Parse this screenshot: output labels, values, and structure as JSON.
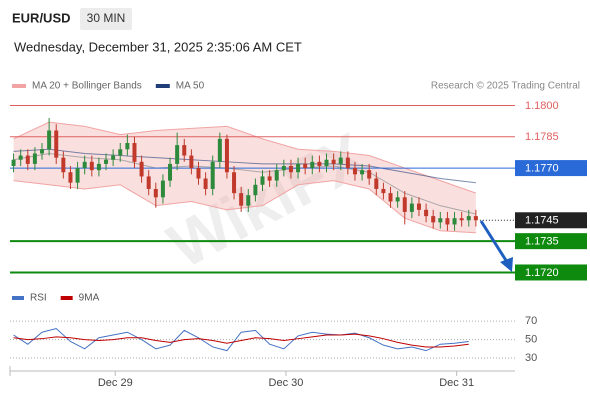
{
  "chart_data": [
    {
      "type": "candlestick",
      "title": "EUR/USD",
      "interval": "30 MIN",
      "subtitle": "Wednesday, December 31, 2025 2:35:06 AM CET",
      "source": "Research © 2025 Trading Central",
      "watermark": "WikiFX",
      "up_color": "#2d8a3c",
      "down_color": "#c0392b",
      "xlim": [
        -0.5,
        70.5
      ],
      "xticks": [
        {
          "value": 14.3,
          "label": "Dec 29"
        },
        {
          "value": 38.3,
          "label": "Dec 30"
        },
        {
          "value": 62.3,
          "label": "Dec 31"
        }
      ],
      "ylim": [
        1.1714,
        1.1805
      ],
      "open": [
        1.1771,
        1.1774,
        1.1776,
        1.1772,
        1.1777,
        1.1779,
        1.1788,
        1.1775,
        1.1768,
        1.1763,
        1.177,
        1.1773,
        1.1769,
        1.1772,
        1.1774,
        1.1776,
        1.1779,
        1.1782,
        1.1773,
        1.1766,
        1.176,
        1.1756,
        1.1764,
        1.1772,
        1.1781,
        1.1776,
        1.177,
        1.1765,
        1.176,
        1.1773,
        1.1784,
        1.1768,
        1.1758,
        1.1752,
        1.1757,
        1.1762,
        1.1766,
        1.1764,
        1.1769,
        1.1771,
        1.1768,
        1.1772,
        1.177,
        1.1773,
        1.1771,
        1.1774,
        1.1772,
        1.1775,
        1.177,
        1.1767,
        1.1769,
        1.1765,
        1.176,
        1.1758,
        1.1754,
        1.1756,
        1.1749,
        1.1753,
        1.175,
        1.1747,
        1.1744,
        1.1746,
        1.1743,
        1.1746,
        1.1745,
        1.1747
      ],
      "high": [
        1.1777,
        1.1779,
        1.1779,
        1.178,
        1.1782,
        1.1794,
        1.1791,
        1.1778,
        1.1771,
        1.1773,
        1.1776,
        1.1776,
        1.1775,
        1.1777,
        1.1779,
        1.1782,
        1.1786,
        1.1785,
        1.1776,
        1.1769,
        1.1763,
        1.1767,
        1.1775,
        1.1787,
        1.1784,
        1.1779,
        1.1773,
        1.1768,
        1.1776,
        1.1787,
        1.1786,
        1.1771,
        1.1761,
        1.176,
        1.1765,
        1.1769,
        1.1769,
        1.1772,
        1.1774,
        1.1774,
        1.1775,
        1.1775,
        1.1776,
        1.1776,
        1.1777,
        1.1777,
        1.1778,
        1.1778,
        1.1773,
        1.1772,
        1.1772,
        1.1768,
        1.1763,
        1.1761,
        1.1759,
        1.1759,
        1.1756,
        1.1756,
        1.1753,
        1.175,
        1.1749,
        1.1749,
        1.1749,
        1.1749,
        1.175,
        1.175
      ],
      "low": [
        1.1768,
        1.1771,
        1.1769,
        1.1769,
        1.1774,
        1.1776,
        1.1772,
        1.1765,
        1.176,
        1.176,
        1.1767,
        1.1766,
        1.1766,
        1.1769,
        1.1771,
        1.1773,
        1.1776,
        1.177,
        1.1763,
        1.1757,
        1.1751,
        1.1753,
        1.1761,
        1.1769,
        1.1773,
        1.1767,
        1.1762,
        1.1757,
        1.1757,
        1.177,
        1.1765,
        1.1755,
        1.1749,
        1.1749,
        1.1754,
        1.1759,
        1.1761,
        1.1761,
        1.1766,
        1.1765,
        1.1765,
        1.1767,
        1.1767,
        1.1768,
        1.1768,
        1.1769,
        1.1769,
        1.1767,
        1.1764,
        1.1764,
        1.1762,
        1.1757,
        1.1755,
        1.1751,
        1.1751,
        1.1743,
        1.1746,
        1.1747,
        1.1744,
        1.1741,
        1.1741,
        1.174,
        1.174,
        1.1742,
        1.1742,
        1.1742
      ],
      "close": [
        1.1774,
        1.1776,
        1.1772,
        1.1777,
        1.1779,
        1.1788,
        1.1775,
        1.1768,
        1.1763,
        1.177,
        1.1773,
        1.1769,
        1.1772,
        1.1774,
        1.1776,
        1.1779,
        1.1782,
        1.1773,
        1.1766,
        1.176,
        1.1756,
        1.1764,
        1.1772,
        1.1781,
        1.1776,
        1.177,
        1.1765,
        1.176,
        1.1773,
        1.1784,
        1.1768,
        1.1758,
        1.1752,
        1.1757,
        1.1762,
        1.1766,
        1.1764,
        1.1769,
        1.1771,
        1.1768,
        1.1772,
        1.177,
        1.1773,
        1.1771,
        1.1774,
        1.1772,
        1.1775,
        1.177,
        1.1767,
        1.1769,
        1.1765,
        1.176,
        1.1758,
        1.1754,
        1.1756,
        1.1749,
        1.1753,
        1.175,
        1.1747,
        1.1744,
        1.1746,
        1.1743,
        1.1746,
        1.1745,
        1.1747,
        1.1745
      ],
      "overlays": {
        "x": [
          0,
          5,
          10,
          15,
          20,
          25,
          30,
          35,
          40,
          45,
          50,
          55,
          60,
          65
        ],
        "series": [
          {
            "name": "MA 20 + Bollinger Bands",
            "color": "#f2a3a3",
            "upper": [
              1.1784,
              1.1792,
              1.179,
              1.1786,
              1.1788,
              1.1789,
              1.179,
              1.1784,
              1.1779,
              1.1778,
              1.1776,
              1.177,
              1.1764,
              1.1758
            ],
            "values": [
              1.1774,
              1.1777,
              1.1775,
              1.1774,
              1.177,
              1.1771,
              1.177,
              1.1768,
              1.177,
              1.1771,
              1.1768,
              1.1758,
              1.1752,
              1.1748
            ],
            "lower": [
              1.1764,
              1.1762,
              1.176,
              1.1762,
              1.1752,
              1.1754,
              1.175,
              1.1752,
              1.1762,
              1.1764,
              1.176,
              1.1746,
              1.174,
              1.1739
            ]
          },
          {
            "name": "MA 50",
            "color": "#1f3e78",
            "values": [
              1.1778,
              1.1779,
              1.1777,
              1.1776,
              1.1775,
              1.1774,
              1.1773,
              1.1772,
              1.1772,
              1.1772,
              1.1771,
              1.1768,
              1.1765,
              1.1763
            ]
          }
        ]
      },
      "levels": [
        {
          "value": 1.18,
          "label": "1.1800",
          "color": "#e06060",
          "boxed": false,
          "width": 1,
          "dash": false
        },
        {
          "value": 1.1785,
          "label": "1.1785",
          "color": "#e06060",
          "boxed": false,
          "width": 1,
          "dash": false
        },
        {
          "value": 1.177,
          "label": "1.1770",
          "color": "#2a6ad8",
          "boxed": true,
          "width": 1,
          "dash": false
        },
        {
          "value": 1.1745,
          "label": "1.1745",
          "color": "#222222",
          "boxed": true,
          "width": 1,
          "dash": true
        },
        {
          "value": 1.1735,
          "label": "1.1735",
          "color": "#0e8a0e",
          "boxed": true,
          "width": 2,
          "dash": false
        },
        {
          "value": 1.172,
          "label": "1.1720",
          "color": "#0e8a0e",
          "boxed": true,
          "width": 2,
          "dash": false
        }
      ]
    },
    {
      "type": "line",
      "x": [
        0,
        2,
        4,
        6,
        8,
        10,
        12,
        14,
        16,
        18,
        20,
        22,
        24,
        26,
        28,
        30,
        32,
        34,
        36,
        38,
        40,
        42,
        44,
        46,
        48,
        50,
        52,
        54,
        56,
        58,
        60,
        62,
        64
      ],
      "ylim": [
        17,
        93
      ],
      "yticks": [
        70,
        50,
        30
      ],
      "series": [
        {
          "name": "RSI",
          "color": "#4472c4",
          "values": [
            55,
            45,
            58,
            62,
            48,
            40,
            52,
            55,
            58,
            50,
            40,
            44,
            60,
            52,
            42,
            38,
            58,
            60,
            45,
            40,
            54,
            58,
            56,
            55,
            57,
            52,
            44,
            40,
            42,
            38,
            45,
            46,
            48
          ]
        },
        {
          "name": "9MA",
          "color": "#c00000",
          "values": [
            52,
            50,
            51,
            53,
            52,
            50,
            49,
            50,
            52,
            52,
            49,
            47,
            50,
            51,
            49,
            46,
            49,
            52,
            51,
            49,
            51,
            53,
            55,
            55,
            56,
            54,
            51,
            47,
            44,
            42,
            42,
            43,
            45
          ]
        }
      ]
    }
  ]
}
